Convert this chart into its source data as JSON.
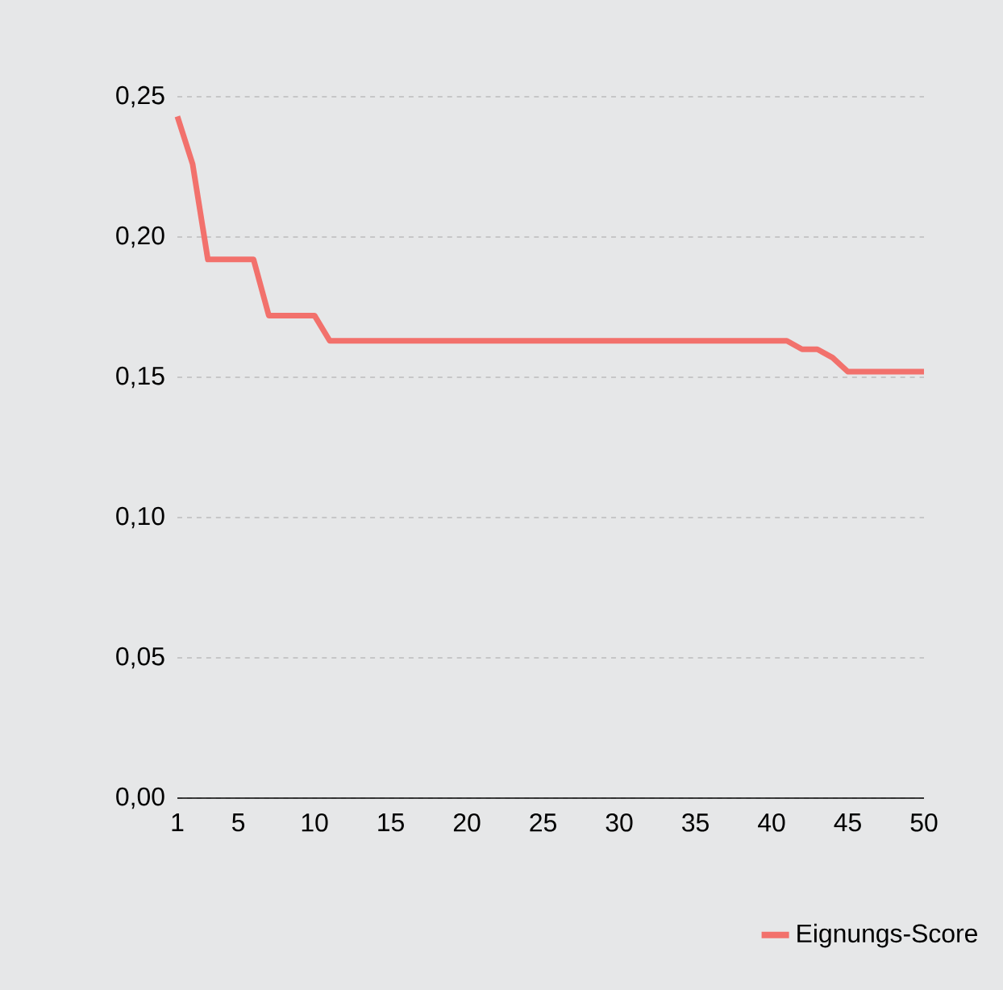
{
  "chart_data": {
    "type": "line",
    "x": [
      1,
      2,
      3,
      4,
      5,
      6,
      7,
      8,
      9,
      10,
      11,
      12,
      13,
      14,
      15,
      16,
      17,
      18,
      19,
      20,
      21,
      22,
      23,
      24,
      25,
      26,
      27,
      28,
      29,
      30,
      31,
      32,
      33,
      34,
      35,
      36,
      37,
      38,
      39,
      40,
      41,
      42,
      43,
      44,
      45,
      46,
      47,
      48,
      49,
      50
    ],
    "series": [
      {
        "name": "Eignungs-Score",
        "color": "#f2716c",
        "values": [
          0.243,
          0.226,
          0.192,
          0.192,
          0.192,
          0.192,
          0.172,
          0.172,
          0.172,
          0.172,
          0.163,
          0.163,
          0.163,
          0.163,
          0.163,
          0.163,
          0.163,
          0.163,
          0.163,
          0.163,
          0.163,
          0.163,
          0.163,
          0.163,
          0.163,
          0.163,
          0.163,
          0.163,
          0.163,
          0.163,
          0.163,
          0.163,
          0.163,
          0.163,
          0.163,
          0.163,
          0.163,
          0.163,
          0.163,
          0.163,
          0.163,
          0.16,
          0.16,
          0.157,
          0.152,
          0.152,
          0.152,
          0.152,
          0.152,
          0.152
        ]
      }
    ],
    "xlim": [
      1,
      50
    ],
    "xticks": [
      1,
      5,
      10,
      15,
      20,
      25,
      30,
      35,
      40,
      45,
      50
    ],
    "ylim": [
      0,
      0.25
    ],
    "yticks": [
      {
        "value": 0,
        "label": "0,00"
      },
      {
        "value": 0.05,
        "label": "0,05"
      },
      {
        "value": 0.1,
        "label": "0,10"
      },
      {
        "value": 0.15,
        "label": "0,15"
      },
      {
        "value": 0.2,
        "label": "0,20"
      },
      {
        "value": 0.25,
        "label": "0,25"
      }
    ],
    "grid": "y",
    "legend": "bottom right",
    "marker": "none",
    "line_style": "solid"
  }
}
